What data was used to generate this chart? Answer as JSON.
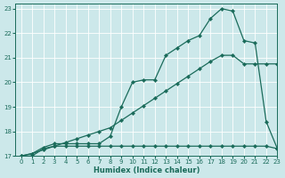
{
  "xlabel": "Humidex (Indice chaleur)",
  "xlim": [
    -0.5,
    23
  ],
  "ylim": [
    17,
    23.2
  ],
  "yticks": [
    17,
    18,
    19,
    20,
    21,
    22,
    23
  ],
  "xticks": [
    0,
    1,
    2,
    3,
    4,
    5,
    6,
    7,
    8,
    9,
    10,
    11,
    12,
    13,
    14,
    15,
    16,
    17,
    18,
    19,
    20,
    21,
    22,
    23
  ],
  "bg_color": "#cce8ea",
  "grid_color": "#ffffff",
  "line_color": "#1a6b5a",
  "line1_x": [
    0,
    1,
    2,
    3,
    4,
    5,
    6,
    7,
    8,
    9,
    10,
    11,
    12,
    13,
    14,
    15,
    16,
    17,
    18,
    19,
    20,
    21,
    22,
    23
  ],
  "line1_y": [
    17.0,
    17.1,
    17.35,
    17.5,
    17.5,
    17.5,
    17.5,
    17.5,
    17.8,
    19.0,
    20.0,
    20.1,
    20.1,
    21.1,
    21.4,
    21.7,
    21.9,
    22.6,
    23.0,
    22.9,
    21.7,
    21.6,
    18.4,
    17.3
  ],
  "line2_x": [
    0,
    1,
    2,
    3,
    4,
    5,
    6,
    7,
    8,
    9,
    10,
    11,
    12,
    13,
    14,
    15,
    16,
    17,
    18,
    19,
    20,
    21,
    22,
    23
  ],
  "line2_y": [
    17.0,
    17.1,
    17.25,
    17.4,
    17.55,
    17.7,
    17.85,
    18.0,
    18.15,
    18.45,
    18.75,
    19.05,
    19.35,
    19.65,
    19.95,
    20.25,
    20.55,
    20.85,
    21.1,
    21.1,
    20.75,
    20.75,
    20.75,
    20.75
  ],
  "line3_x": [
    0,
    1,
    2,
    3,
    4,
    5,
    6,
    7,
    8,
    9,
    10,
    11,
    12,
    13,
    14,
    15,
    16,
    17,
    18,
    19,
    20,
    21,
    22,
    23
  ],
  "line3_y": [
    17.0,
    17.0,
    17.3,
    17.4,
    17.4,
    17.4,
    17.4,
    17.4,
    17.4,
    17.4,
    17.4,
    17.4,
    17.4,
    17.4,
    17.4,
    17.4,
    17.4,
    17.4,
    17.4,
    17.4,
    17.4,
    17.4,
    17.4,
    17.3
  ]
}
